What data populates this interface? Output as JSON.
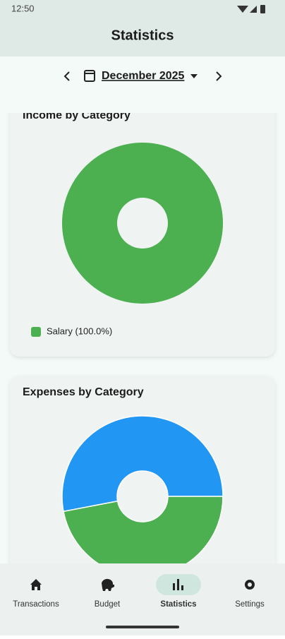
{
  "status_bar": {
    "time": "12:50"
  },
  "header": {
    "title": "Statistics"
  },
  "month_selector": {
    "label": "December 2025"
  },
  "chart_data": [
    {
      "type": "pie",
      "title": "Income by Category",
      "values": [
        100
      ],
      "colors": [
        "#4caf50"
      ],
      "legend": [
        "Salary (100.0%)"
      ]
    },
    {
      "type": "pie",
      "title": "Expenses by Category",
      "values": [
        53,
        47
      ],
      "colors": [
        "#2196f3",
        "#4caf50"
      ]
    }
  ],
  "nav": {
    "items": [
      "Transactions",
      "Budget",
      "Statistics",
      "Settings"
    ],
    "active": 2
  }
}
